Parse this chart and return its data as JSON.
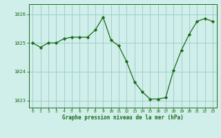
{
  "x": [
    0,
    1,
    2,
    3,
    4,
    5,
    6,
    7,
    8,
    9,
    10,
    11,
    12,
    13,
    14,
    15,
    16,
    17,
    18,
    19,
    20,
    21,
    22,
    23
  ],
  "y": [
    1025.0,
    1024.85,
    1025.0,
    1025.0,
    1025.15,
    1025.2,
    1025.2,
    1025.2,
    1025.45,
    1025.9,
    1025.1,
    1024.9,
    1024.35,
    1023.65,
    1023.3,
    1023.05,
    1023.05,
    1023.1,
    1024.05,
    1024.75,
    1025.3,
    1025.75,
    1025.85,
    1025.75
  ],
  "line_color": "#1a6b1a",
  "marker_color": "#1a6b1a",
  "bg_color": "#d0eeea",
  "grid_color": "#a0d0cc",
  "text_color": "#1a6b1a",
  "xlabel": "Graphe pression niveau de la mer (hPa)",
  "ylim_min": 1022.75,
  "ylim_max": 1026.35,
  "yticks": [
    1023,
    1024,
    1025,
    1026
  ],
  "xticks": [
    0,
    1,
    2,
    3,
    4,
    5,
    6,
    7,
    8,
    9,
    10,
    11,
    12,
    13,
    14,
    15,
    16,
    17,
    18,
    19,
    20,
    21,
    22,
    23
  ]
}
